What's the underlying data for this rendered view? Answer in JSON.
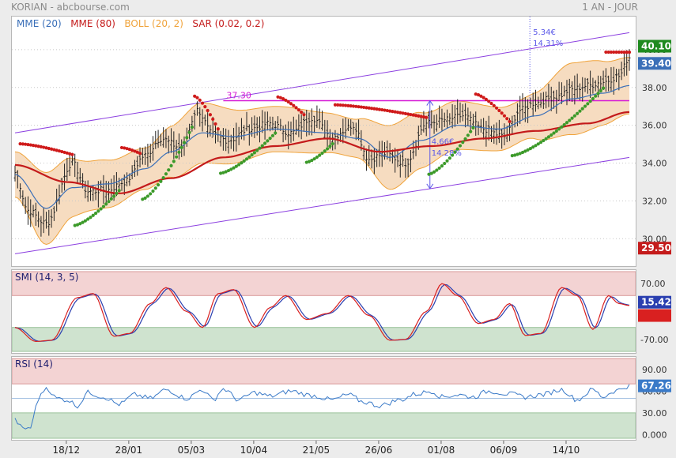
{
  "header": {
    "title": "KORIAN - abcbourse.com",
    "period": "1 AN - JOUR"
  },
  "colors": {
    "mme20": "#3a6fb8",
    "mme80": "#c41b1b",
    "boll": "#f0a33a",
    "boll_fill": "#f6dcc0",
    "sar_up": "#3c9a2a",
    "sar_down": "#cf1a1a",
    "channel": "#8b3fe0",
    "resistance": "#d61bd6",
    "annot": "#5a58e8",
    "smi_fast": "#d92020",
    "smi_slow": "#2a3fb0",
    "rsi": "#3a7ac8",
    "zone_red": "#f3d3d3",
    "zone_green": "#cfe3cf"
  },
  "chart_data": [
    {
      "type": "line",
      "panel": "price",
      "legend": [
        {
          "label": "MME (20)",
          "color": "#3a6fb8"
        },
        {
          "label": "MME (80)",
          "color": "#c41b1b"
        },
        {
          "label": "BOLL (20, 2)",
          "color": "#f0a33a"
        },
        {
          "label": "SAR (0.02, 0.2)",
          "color": "#c41b1b"
        }
      ],
      "ylim": [
        28.8,
        41.5
      ],
      "yticks": [
        "40.00",
        "38.00",
        "36.00",
        "34.00",
        "32.00",
        "30.00"
      ],
      "ytick_values": [
        40,
        38,
        36,
        34,
        32,
        30
      ],
      "xticks": [
        "18/12",
        "28/01",
        "05/03",
        "10/04",
        "21/05",
        "26/06",
        "01/08",
        "06/09",
        "14/10"
      ],
      "price_flags": [
        {
          "label": "40.10",
          "value": 40.1,
          "color": "#1f8a1f"
        },
        {
          "label": "39.40",
          "value": 39.4,
          "color": "#3a6fb8"
        },
        {
          "label": "29.50",
          "value": 29.5,
          "color": "#c41b1b"
        }
      ],
      "price_anchors": [
        [
          0,
          33.5
        ],
        [
          5,
          31.5
        ],
        [
          12,
          30.8
        ],
        [
          22,
          34.0
        ],
        [
          28,
          32.5
        ],
        [
          36,
          32.6
        ],
        [
          42,
          33.0
        ],
        [
          50,
          34.4
        ],
        [
          56,
          35.3
        ],
        [
          64,
          34.8
        ],
        [
          70,
          36.8
        ],
        [
          76,
          35.5
        ],
        [
          82,
          35.2
        ],
        [
          90,
          35.8
        ],
        [
          98,
          36.1
        ],
        [
          106,
          35.6
        ],
        [
          114,
          36.4
        ],
        [
          122,
          35.4
        ],
        [
          130,
          36.0
        ],
        [
          136,
          34.2
        ],
        [
          142,
          34.5
        ],
        [
          150,
          34.0
        ],
        [
          158,
          36.1
        ],
        [
          166,
          36.3
        ],
        [
          172,
          36.5
        ],
        [
          180,
          35.8
        ],
        [
          188,
          35.4
        ],
        [
          194,
          36.8
        ],
        [
          200,
          37.2
        ],
        [
          208,
          37.5
        ],
        [
          214,
          37.9
        ],
        [
          220,
          38.1
        ],
        [
          226,
          38.3
        ],
        [
          232,
          38.6
        ],
        [
          236,
          39.6
        ]
      ],
      "mme20_anchors": [
        [
          0,
          33.4
        ],
        [
          12,
          31.6
        ],
        [
          22,
          32.7
        ],
        [
          36,
          32.9
        ],
        [
          50,
          33.7
        ],
        [
          60,
          34.6
        ],
        [
          72,
          35.6
        ],
        [
          84,
          35.4
        ],
        [
          100,
          35.8
        ],
        [
          120,
          35.6
        ],
        [
          132,
          35.3
        ],
        [
          144,
          34.3
        ],
        [
          156,
          35.2
        ],
        [
          170,
          36.0
        ],
        [
          186,
          35.8
        ],
        [
          200,
          36.5
        ],
        [
          214,
          37.4
        ],
        [
          226,
          37.7
        ],
        [
          236,
          38.1
        ]
      ],
      "mme80_anchors": [
        [
          0,
          33.9
        ],
        [
          20,
          33.0
        ],
        [
          40,
          32.4
        ],
        [
          60,
          33.2
        ],
        [
          80,
          34.3
        ],
        [
          100,
          34.9
        ],
        [
          120,
          35.3
        ],
        [
          140,
          34.6
        ],
        [
          160,
          34.9
        ],
        [
          180,
          35.3
        ],
        [
          200,
          35.7
        ],
        [
          220,
          36.1
        ],
        [
          236,
          36.7
        ]
      ],
      "boll_width_anchors": [
        [
          0,
          1.2
        ],
        [
          12,
          1.9
        ],
        [
          30,
          1.3
        ],
        [
          50,
          1.1
        ],
        [
          70,
          1.6
        ],
        [
          100,
          1.2
        ],
        [
          130,
          1.0
        ],
        [
          145,
          1.7
        ],
        [
          165,
          1.3
        ],
        [
          195,
          1.1
        ],
        [
          215,
          1.9
        ],
        [
          236,
          1.5
        ]
      ],
      "channel": {
        "upper": [
          [
            0,
            35.6
          ],
          [
            236,
            40.9
          ]
        ],
        "lower": [
          [
            0,
            29.2
          ],
          [
            236,
            34.3
          ]
        ]
      },
      "resistance": {
        "label": "37.30",
        "value": 37.3,
        "start": 80,
        "end": 236
      },
      "annotations": [
        {
          "label": "4.66€",
          "x": 160,
          "y": 35.0
        },
        {
          "label": "14.28%",
          "x": 160,
          "y": 34.4
        },
        {
          "label": "5.34€",
          "x": 199,
          "y": 40.8
        },
        {
          "label": "14.31%",
          "x": 199,
          "y": 40.2
        }
      ],
      "sar_segments": [
        {
          "dir": "down",
          "from": 2,
          "to": 22
        },
        {
          "dir": "up",
          "from": 23,
          "to": 40
        },
        {
          "dir": "down",
          "from": 41,
          "to": 48
        },
        {
          "dir": "up",
          "from": 49,
          "to": 68
        },
        {
          "dir": "down",
          "from": 69,
          "to": 78
        },
        {
          "dir": "up",
          "from": 79,
          "to": 100
        },
        {
          "dir": "down",
          "from": 101,
          "to": 111
        },
        {
          "dir": "up",
          "from": 112,
          "to": 122
        },
        {
          "dir": "down",
          "from": 123,
          "to": 158
        },
        {
          "dir": "up",
          "from": 159,
          "to": 176
        },
        {
          "dir": "down",
          "from": 177,
          "to": 190
        },
        {
          "dir": "up",
          "from": 191,
          "to": 226
        },
        {
          "dir": "down",
          "from": 227,
          "to": 236
        }
      ]
    },
    {
      "type": "line",
      "panel": "smi",
      "legend": "SMI (14, 3, 5)",
      "ylim": [
        -100,
        100
      ],
      "yticks": [
        "70.00",
        "-70.00"
      ],
      "ytick_values": [
        70,
        -70
      ],
      "zones": {
        "upper": 40,
        "lower": -40
      },
      "last_flag": {
        "label": "15.42",
        "value": 15.42
      },
      "extra_flag": {
        "value": -10
      },
      "smi_anchors": [
        [
          0,
          -40
        ],
        [
          8,
          -75
        ],
        [
          14,
          -72
        ],
        [
          24,
          35
        ],
        [
          30,
          45
        ],
        [
          38,
          -62
        ],
        [
          44,
          -55
        ],
        [
          52,
          20
        ],
        [
          58,
          60
        ],
        [
          66,
          0
        ],
        [
          72,
          -40
        ],
        [
          78,
          45
        ],
        [
          84,
          55
        ],
        [
          92,
          -40
        ],
        [
          98,
          10
        ],
        [
          104,
          40
        ],
        [
          112,
          -20
        ],
        [
          120,
          -5
        ],
        [
          128,
          40
        ],
        [
          136,
          -10
        ],
        [
          144,
          -72
        ],
        [
          150,
          -70
        ],
        [
          158,
          0
        ],
        [
          164,
          70
        ],
        [
          170,
          40
        ],
        [
          178,
          -30
        ],
        [
          184,
          -20
        ],
        [
          190,
          20
        ],
        [
          196,
          -60
        ],
        [
          202,
          -55
        ],
        [
          210,
          60
        ],
        [
          216,
          40
        ],
        [
          222,
          -45
        ],
        [
          228,
          40
        ],
        [
          232,
          20
        ],
        [
          236,
          15
        ]
      ]
    },
    {
      "type": "line",
      "panel": "rsi",
      "legend": "RSI (14)",
      "ylim": [
        -5,
        105
      ],
      "yticks": [
        "90.00",
        "60.00",
        "30.00",
        "0.000"
      ],
      "ytick_values": [
        90,
        60,
        30,
        0
      ],
      "zones": {
        "upper": 70,
        "lower": 30
      },
      "midline": 50,
      "last_flag": {
        "label": "67.26",
        "value": 67.26
      },
      "rsi_anchors": [
        [
          0,
          20
        ],
        [
          3,
          8
        ],
        [
          6,
          10
        ],
        [
          9,
          50
        ],
        [
          12,
          65
        ],
        [
          16,
          50
        ],
        [
          20,
          48
        ],
        [
          24,
          40
        ],
        [
          28,
          58
        ],
        [
          34,
          52
        ],
        [
          40,
          42
        ],
        [
          46,
          55
        ],
        [
          52,
          50
        ],
        [
          58,
          62
        ],
        [
          66,
          50
        ],
        [
          72,
          62
        ],
        [
          76,
          48
        ],
        [
          80,
          63
        ],
        [
          86,
          48
        ],
        [
          92,
          58
        ],
        [
          98,
          53
        ],
        [
          106,
          60
        ],
        [
          114,
          54
        ],
        [
          122,
          48
        ],
        [
          128,
          55
        ],
        [
          134,
          45
        ],
        [
          140,
          40
        ],
        [
          148,
          48
        ],
        [
          154,
          56
        ],
        [
          160,
          60
        ],
        [
          164,
          52
        ],
        [
          170,
          55
        ],
        [
          176,
          52
        ],
        [
          182,
          60
        ],
        [
          190,
          56
        ],
        [
          196,
          52
        ],
        [
          202,
          55
        ],
        [
          210,
          62
        ],
        [
          216,
          48
        ],
        [
          222,
          62
        ],
        [
          226,
          52
        ],
        [
          230,
          60
        ],
        [
          236,
          67
        ]
      ]
    }
  ]
}
